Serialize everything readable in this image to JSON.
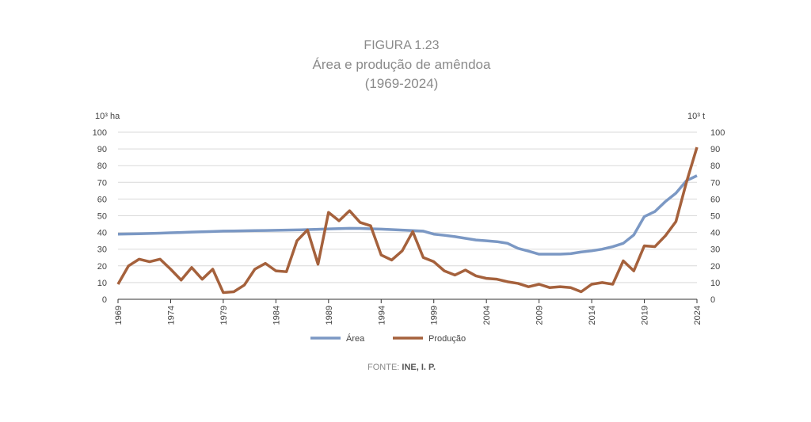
{
  "chart_data": {
    "type": "line",
    "title": "FIGURA 1.23",
    "subtitle": "Área e produção de amêndoa",
    "period": "(1969-2024)",
    "ylabel_left": "10³ ha",
    "ylabel_right": "10³ t",
    "ylim": [
      0,
      100
    ],
    "yticks": [
      0,
      10,
      20,
      30,
      40,
      50,
      60,
      70,
      80,
      90,
      100
    ],
    "xlim": [
      1969,
      2024
    ],
    "xticks": [
      1969,
      1974,
      1979,
      1984,
      1989,
      1994,
      1999,
      2004,
      2009,
      2014,
      2019,
      2024
    ],
    "grid": true,
    "legend_position": "bottom-center",
    "x": [
      1969,
      1970,
      1971,
      1972,
      1973,
      1974,
      1975,
      1976,
      1977,
      1978,
      1979,
      1980,
      1981,
      1982,
      1983,
      1984,
      1985,
      1986,
      1987,
      1988,
      1989,
      1990,
      1991,
      1992,
      1993,
      1994,
      1995,
      1996,
      1997,
      1998,
      1999,
      2000,
      2001,
      2002,
      2003,
      2004,
      2005,
      2006,
      2007,
      2008,
      2009,
      2010,
      2011,
      2012,
      2013,
      2014,
      2015,
      2016,
      2017,
      2018,
      2019,
      2020,
      2021,
      2022,
      2023,
      2024
    ],
    "series": [
      {
        "name": "Área",
        "color": "#7b98c4",
        "values": [
          39,
          39.1,
          39.2,
          39.4,
          39.6,
          39.8,
          40,
          40.2,
          40.4,
          40.6,
          40.8,
          40.9,
          41,
          41.1,
          41.2,
          41.3,
          41.4,
          41.5,
          41.7,
          41.9,
          42.1,
          42.3,
          42.5,
          42.4,
          42.2,
          42,
          41.7,
          41.4,
          41.1,
          40.8,
          39,
          38.3,
          37.5,
          36.5,
          35.5,
          35,
          34.5,
          33.5,
          30.5,
          28.8,
          27,
          27,
          27,
          27.3,
          28.3,
          29,
          30,
          31.5,
          33.5,
          38.5,
          49.5,
          52.5,
          58.5,
          63.5,
          71,
          74
        ]
      },
      {
        "name": "Produção",
        "color": "#a5613c",
        "values": [
          9,
          20,
          24,
          22.5,
          24,
          18,
          11.5,
          19,
          12,
          18,
          4,
          4.5,
          8.5,
          18,
          21.5,
          17,
          16.5,
          35,
          41.5,
          21,
          52,
          47,
          53,
          46,
          44,
          26.5,
          23.5,
          29,
          40.5,
          25,
          22.5,
          17,
          14.5,
          17.5,
          14,
          12.5,
          12,
          10.5,
          9.5,
          7.5,
          9,
          7,
          7.5,
          7,
          4.5,
          9,
          10,
          9,
          23,
          17,
          32,
          31.5,
          38,
          46.5,
          70,
          91
        ]
      }
    ]
  },
  "source": {
    "label": "FONTE:",
    "value": "INE, I. P."
  }
}
